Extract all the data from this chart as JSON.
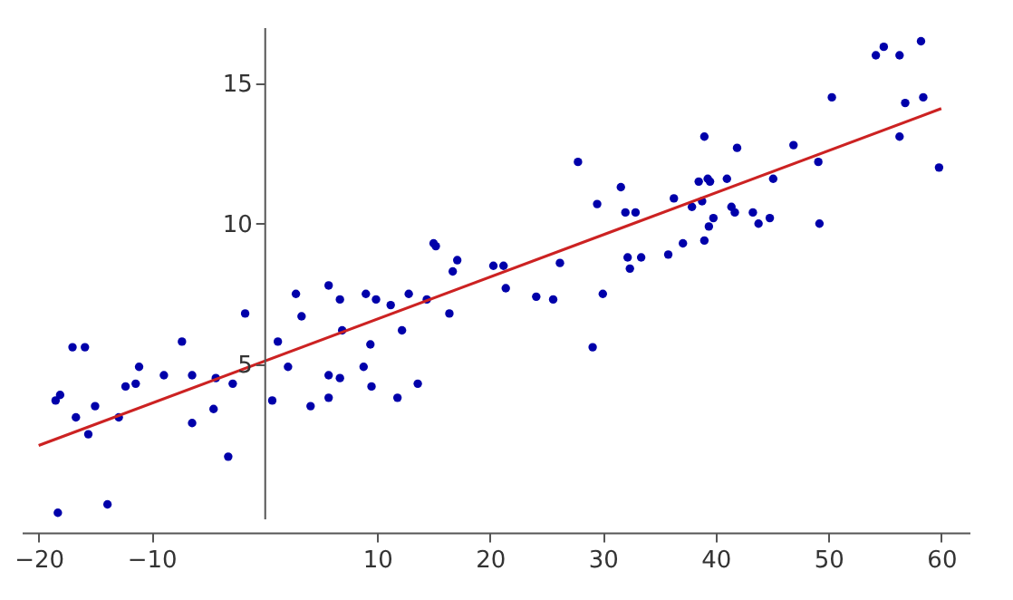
{
  "chart_data": {
    "type": "scatter",
    "xlim": [
      -21.5,
      62.5
    ],
    "ylim": [
      -0.5,
      17
    ],
    "xticks": [
      -20,
      -10,
      10,
      20,
      30,
      40,
      50,
      60
    ],
    "yticks": [
      5,
      10,
      15
    ],
    "grid": false,
    "series": [
      {
        "type": "scatter",
        "marker": "circle",
        "color": "#0000aa",
        "x": [
          -18.5,
          -18.1,
          -16.7,
          -17.0,
          -15.9,
          -15.6,
          -15.0,
          -18.3,
          -13.9,
          -12.9,
          -12.3,
          -11.4,
          -11.1,
          -8.9,
          -7.3,
          -6.4,
          -6.4,
          -4.5,
          -4.3,
          -3.2,
          -2.8,
          -1.7,
          0.7,
          1.2,
          2.1,
          2.8,
          3.3,
          4.1,
          5.7,
          5.7,
          5.7,
          6.7,
          6.7,
          6.9,
          9.0,
          9.9,
          9.4,
          8.8,
          9.5,
          11.2,
          12.2,
          11.8,
          12.8,
          13.6,
          14.4,
          15.0,
          15.2,
          16.4,
          16.7,
          17.1,
          20.3,
          21.2,
          21.4,
          24.1,
          25.6,
          26.2,
          27.8,
          29.1,
          29.5,
          30.0,
          31.6,
          32.0,
          32.9,
          32.2,
          33.4,
          32.4,
          35.8,
          36.3,
          37.1,
          37.9,
          38.5,
          38.8,
          39.0,
          39.0,
          39.3,
          39.4,
          39.5,
          39.8,
          41.0,
          41.4,
          41.7,
          41.9,
          43.3,
          43.8,
          44.8,
          45.1,
          46.9,
          49.1,
          49.2,
          50.3,
          54.2,
          54.9,
          56.3,
          56.8,
          56.3,
          58.2,
          58.4,
          59.8
        ],
        "values": [
          3.7,
          3.9,
          3.1,
          5.6,
          5.6,
          2.5,
          3.5,
          -0.3,
          0.0,
          3.1,
          4.2,
          4.3,
          4.9,
          4.6,
          5.8,
          4.6,
          2.9,
          3.4,
          4.5,
          1.7,
          4.3,
          6.8,
          3.7,
          5.8,
          4.9,
          7.5,
          6.7,
          3.5,
          7.8,
          4.6,
          3.8,
          7.3,
          4.5,
          6.2,
          7.5,
          7.3,
          5.7,
          4.9,
          4.2,
          7.1,
          6.2,
          3.8,
          7.5,
          4.3,
          7.3,
          9.3,
          9.2,
          6.8,
          8.3,
          8.7,
          8.5,
          8.5,
          7.7,
          7.4,
          7.3,
          8.6,
          12.2,
          5.6,
          10.7,
          7.5,
          11.3,
          10.4,
          10.4,
          8.8,
          8.8,
          8.4,
          8.9,
          10.9,
          9.3,
          10.6,
          11.5,
          10.8,
          13.1,
          9.4,
          11.6,
          9.9,
          11.5,
          10.2,
          11.6,
          10.6,
          10.4,
          12.7,
          10.4,
          10.0,
          10.2,
          11.6,
          12.8,
          12.2,
          10.0,
          14.5,
          16.0,
          16.3,
          16.0,
          14.3,
          13.1,
          16.5,
          14.5,
          12.0
        ]
      },
      {
        "type": "line",
        "color": "#cc2222",
        "x": [
          -20,
          60
        ],
        "values": [
          2.1,
          14.1
        ]
      }
    ]
  }
}
